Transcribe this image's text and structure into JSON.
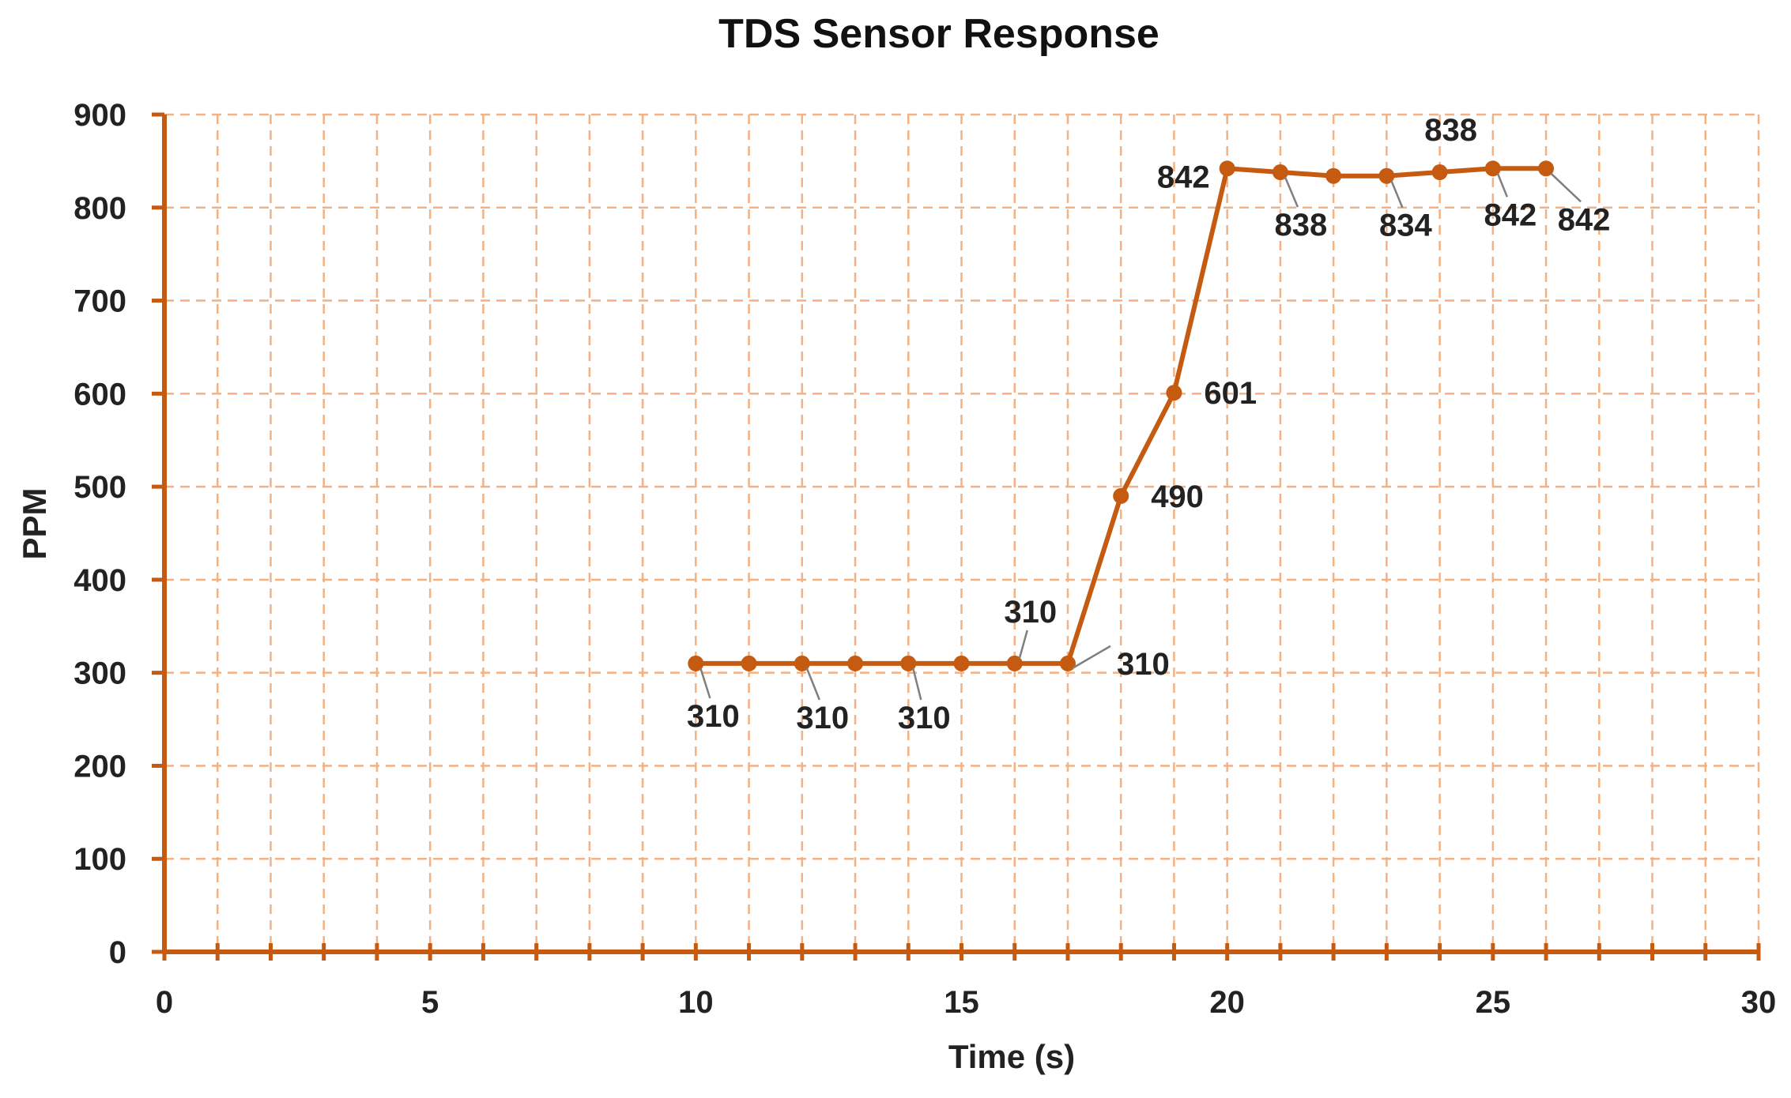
{
  "colors": {
    "series": "#c55a11",
    "grid": "#f4b183",
    "axis": "#c55a11",
    "text": "#222222",
    "leader": "#7f7f7f"
  },
  "chart_data": {
    "type": "scatter",
    "title": "TDS Sensor Response",
    "xlabel": "Time (s)",
    "ylabel": "PPM",
    "xlim": [
      0,
      30
    ],
    "ylim": [
      0,
      900
    ],
    "x_ticks": [
      0,
      5,
      10,
      15,
      20,
      25,
      30
    ],
    "x_tick_labels": [
      "0",
      "5",
      "10",
      "15",
      "20",
      "25",
      "30"
    ],
    "y_ticks": [
      0,
      100,
      200,
      300,
      400,
      500,
      600,
      700,
      800,
      900
    ],
    "y_tick_labels": [
      "0",
      "100",
      "200",
      "300",
      "400",
      "500",
      "600",
      "700",
      "800",
      "900"
    ],
    "grid": true,
    "grid_style": "dashed",
    "lines": "straight lines with markers",
    "series": [
      {
        "x": [
          10,
          11,
          12,
          13,
          14,
          15,
          16,
          17,
          18,
          19,
          20,
          21,
          22,
          23,
          24,
          25,
          26
        ],
        "y": [
          310,
          310,
          310,
          310,
          310,
          310,
          310,
          310,
          490,
          601,
          842,
          838,
          834,
          834,
          838,
          842,
          842
        ]
      }
    ],
    "data_labels": [
      "310",
      "310",
      "310",
      "310",
      "310",
      "310",
      "490",
      "601",
      "842",
      "838",
      "834",
      "838",
      "842",
      "842"
    ]
  }
}
